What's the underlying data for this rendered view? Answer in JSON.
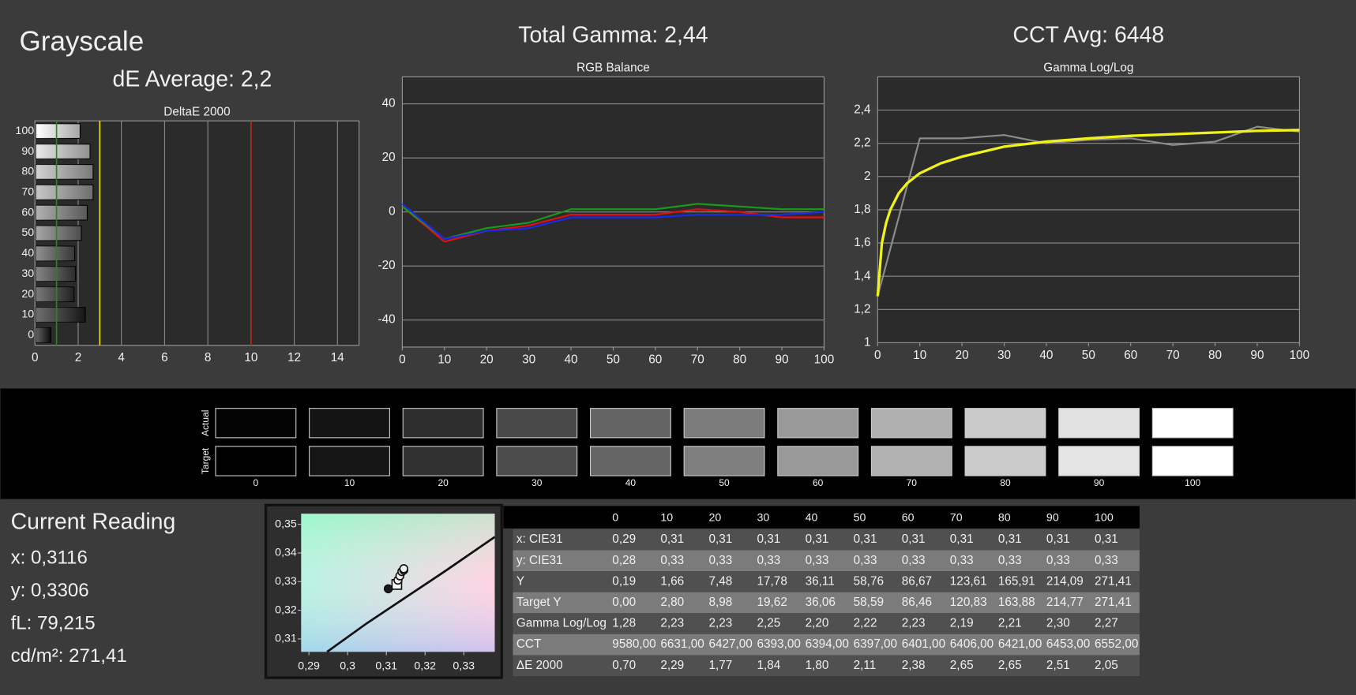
{
  "header": {
    "title": "Grayscale",
    "subtitle": "dE Average: 2,2"
  },
  "chart_data": [
    {
      "type": "hbar",
      "title": "DeltaE 2000",
      "categories": [
        "0",
        "10",
        "20",
        "30",
        "40",
        "50",
        "60",
        "70",
        "80",
        "90",
        "100"
      ],
      "values": [
        0.7,
        2.29,
        1.77,
        1.84,
        1.8,
        2.11,
        2.38,
        2.65,
        2.65,
        2.51,
        2.05
      ],
      "colors": [
        "#111111",
        "#222222",
        "#333333",
        "#444444",
        "#555555",
        "#777777",
        "#888888",
        "#aaaaaa",
        "#bbbbbb",
        "#dddddd",
        "#ffffff"
      ],
      "xlim": [
        0,
        15
      ],
      "xticks": [
        0,
        2,
        4,
        6,
        8,
        10,
        12,
        14
      ],
      "grid": true,
      "reference_lines": [
        {
          "value": 1,
          "color": "#1f8a1f"
        },
        {
          "value": 3,
          "color": "#e8e800"
        },
        {
          "value": 10,
          "color": "#c81e1e"
        }
      ]
    },
    {
      "type": "line",
      "title": "Total Gamma: 2,44",
      "subtitle": "RGB Balance",
      "x": [
        0,
        10,
        20,
        30,
        40,
        50,
        60,
        70,
        80,
        90,
        100
      ],
      "series": [
        {
          "color": "#e01010",
          "line_width": 2,
          "values": [
            2,
            -11,
            -7,
            -5,
            -1,
            -1,
            -1,
            1,
            0,
            -2,
            -2
          ]
        },
        {
          "color": "#1a9a1a",
          "line_width": 2,
          "values": [
            2,
            -10,
            -6,
            -4,
            1,
            1,
            1,
            3,
            2,
            1,
            1
          ]
        },
        {
          "color": "#1a2ae8",
          "line_width": 2,
          "values": [
            3,
            -10,
            -7,
            -6,
            -2,
            -2,
            -2,
            -1,
            -1,
            -1,
            0
          ]
        }
      ],
      "xlim": [
        0,
        100
      ],
      "xticks": [
        0,
        10,
        20,
        30,
        40,
        50,
        60,
        70,
        80,
        90,
        100
      ],
      "ylim": [
        -50,
        50
      ],
      "yticks": [
        -40,
        -20,
        0,
        20,
        40
      ],
      "grid": true
    },
    {
      "type": "line",
      "title": "CCT Avg: 6448",
      "subtitle": "Gamma Log/Log",
      "series": [
        {
          "color": "#8c8c8c",
          "line_width": 2,
          "x": [
            0,
            10,
            20,
            30,
            40,
            50,
            60,
            70,
            80,
            90,
            100
          ],
          "values": [
            1.28,
            2.23,
            2.23,
            2.25,
            2.2,
            2.22,
            2.23,
            2.19,
            2.21,
            2.3,
            2.27
          ]
        },
        {
          "color": "#f2f21a",
          "line_width": 3,
          "x": [
            0,
            1,
            2,
            3,
            5,
            7,
            10,
            15,
            20,
            30,
            40,
            50,
            60,
            70,
            80,
            90,
            100
          ],
          "values": [
            1.28,
            1.6,
            1.72,
            1.8,
            1.9,
            1.96,
            2.02,
            2.08,
            2.12,
            2.18,
            2.21,
            2.23,
            2.245,
            2.255,
            2.265,
            2.275,
            2.28
          ]
        }
      ],
      "xlim": [
        0,
        100
      ],
      "xticks": [
        0,
        10,
        20,
        30,
        40,
        50,
        60,
        70,
        80,
        90,
        100
      ],
      "ylim": [
        1,
        2.6
      ],
      "yticks": [
        1,
        {
          "value": 1.2,
          "label": "1,2"
        },
        {
          "value": 1.4,
          "label": "1,4"
        },
        {
          "value": 1.6,
          "label": "1,6"
        },
        {
          "value": 1.8,
          "label": "1,8"
        },
        2,
        {
          "value": 2.2,
          "label": "2,2"
        },
        {
          "value": 2.4,
          "label": "2,4"
        }
      ],
      "grid": true
    },
    {
      "type": "scatter",
      "series": [
        {
          "style": "line",
          "color": "#111111",
          "x": [
            0.2947,
            0.305,
            0.315,
            0.325,
            0.338
          ],
          "values": [
            0.3055,
            0.3155,
            0.3245,
            0.3335,
            0.3456
          ]
        },
        {
          "style": "square",
          "color": "#ffffff",
          "x": [
            0.3127
          ],
          "values": [
            0.329
          ]
        },
        {
          "style": "circle",
          "color": "#f0f0f0",
          "x": [
            0.313,
            0.3135,
            0.314,
            0.3145,
            0.3145
          ],
          "values": [
            0.3305,
            0.332,
            0.3335,
            0.334,
            0.3345
          ]
        },
        {
          "style": "circle",
          "color": "#1a1a1a",
          "x": [
            0.3105
          ],
          "values": [
            0.3275
          ]
        }
      ],
      "xlim": [
        0.288,
        0.338
      ],
      "xticks": [
        {
          "value": 0.29,
          "label": "0,29"
        },
        {
          "value": 0.3,
          "label": "0,3"
        },
        {
          "value": 0.31,
          "label": "0,31"
        },
        {
          "value": 0.32,
          "label": "0,32"
        },
        {
          "value": 0.33,
          "label": "0,33"
        }
      ],
      "ylim": [
        0.3055,
        0.3537
      ],
      "yticks": [
        {
          "value": 0.31,
          "label": "0,31"
        },
        {
          "value": 0.32,
          "label": "0,32"
        },
        {
          "value": 0.33,
          "label": "0,33"
        },
        {
          "value": 0.34,
          "label": "0,34"
        },
        {
          "value": 0.35,
          "label": "0,35"
        }
      ]
    }
  ],
  "swatches": {
    "row_labels": [
      "Actual",
      "Target"
    ],
    "labels": [
      "0",
      "10",
      "20",
      "30",
      "40",
      "50",
      "60",
      "70",
      "80",
      "90",
      "100"
    ],
    "actual": [
      "#030303",
      "#141414",
      "#2e2e2e",
      "#494949",
      "#646464",
      "#7c7c7c",
      "#999999",
      "#b0b0b0",
      "#cacaca",
      "#e1e1e1",
      "#ffffff"
    ],
    "target": [
      "#000000",
      "#151515",
      "#313131",
      "#4b4b4b",
      "#656565",
      "#7f7f7f",
      "#999999",
      "#b2b2b2",
      "#cbcbcb",
      "#e4e4e4",
      "#ffffff"
    ]
  },
  "reading": {
    "title": "Current Reading",
    "lines": [
      "x: 0,3116",
      "y: 0,3306",
      "fL: 79,215",
      "cd/m²: 271,41"
    ]
  },
  "table": {
    "header": [
      "0",
      "10",
      "20",
      "30",
      "40",
      "50",
      "60",
      "70",
      "80",
      "90",
      "100"
    ],
    "rows": [
      [
        "x: CIE31",
        "0,29",
        "0,31",
        "0,31",
        "0,31",
        "0,31",
        "0,31",
        "0,31",
        "0,31",
        "0,31",
        "0,31",
        "0,31"
      ],
      [
        "y: CIE31",
        "0,28",
        "0,33",
        "0,33",
        "0,33",
        "0,33",
        "0,33",
        "0,33",
        "0,33",
        "0,33",
        "0,33",
        "0,33"
      ],
      [
        "Y",
        "0,19",
        "1,66",
        "7,48",
        "17,78",
        "36,11",
        "58,76",
        "86,67",
        "123,61",
        "165,91",
        "214,09",
        "271,41"
      ],
      [
        "Target Y",
        "0,00",
        "2,80",
        "8,98",
        "19,62",
        "36,06",
        "58,59",
        "86,46",
        "120,83",
        "163,88",
        "214,77",
        "271,41"
      ],
      [
        "Gamma Log/Log",
        "1,28",
        "2,23",
        "2,23",
        "2,25",
        "2,20",
        "2,22",
        "2,23",
        "2,19",
        "2,21",
        "2,30",
        "2,27"
      ],
      [
        "CCT",
        "9580,00",
        "6631,00",
        "6427,00",
        "6393,00",
        "6394,00",
        "6397,00",
        "6401,00",
        "6406,00",
        "6421,00",
        "6453,00",
        "6552,00"
      ],
      [
        "ΔE 2000",
        "0,70",
        "2,29",
        "1,77",
        "1,84",
        "1,80",
        "2,11",
        "2,38",
        "2,65",
        "2,65",
        "2,51",
        "2,05"
      ]
    ]
  }
}
